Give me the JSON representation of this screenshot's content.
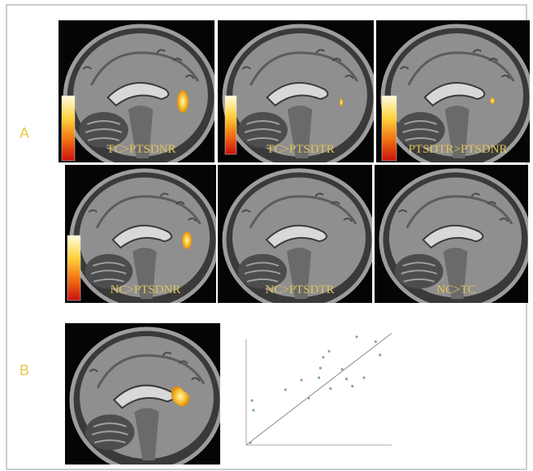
{
  "figure": {
    "panel_a": {
      "letter": "A",
      "labels": [
        "TC>PTSDNR",
        "TC>PTSDTR",
        "PTSDTR>PTSDNR",
        "NC>PTSDNR",
        "NC>PTSDTR",
        "NC>TC"
      ]
    },
    "panel_b": {
      "letter": "B"
    },
    "chart_data": {
      "type": "scatter",
      "x": [
        4,
        5,
        3,
        27,
        38,
        43,
        50,
        51,
        53,
        57,
        58,
        66,
        69,
        73,
        76,
        81,
        89,
        92
      ],
      "y": [
        37,
        29,
        2,
        46,
        54,
        39,
        56,
        64,
        73,
        78,
        47,
        63,
        55,
        49,
        90,
        56,
        86,
        75
      ],
      "xlim": [
        0,
        100
      ],
      "ylim": [
        0,
        100
      ],
      "fit_line": {
        "x": [
          0,
          100
        ],
        "y": [
          0,
          93
        ]
      },
      "color": "#7fa6b8"
    }
  }
}
